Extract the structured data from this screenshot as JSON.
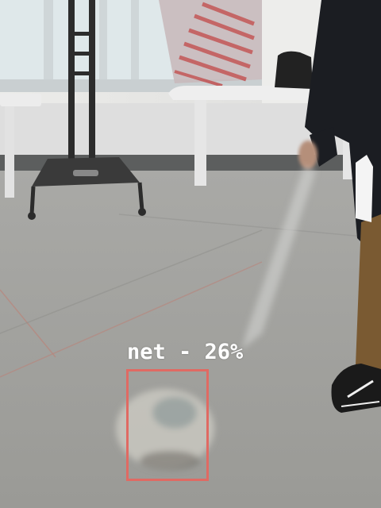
{
  "detection": {
    "label": "net - 26%",
    "class_name": "net",
    "confidence_percent": 26,
    "box_color": "#e06a63",
    "label_color": "#ffffff"
  },
  "scene": {
    "floor_color": "#9c9c98",
    "wall_color": "#e6e6e4",
    "window_color": "#d9e4e6",
    "bench_color": "#ececec",
    "shoe_color": "#1a1a1a",
    "pants_color": "#7a5a32"
  }
}
